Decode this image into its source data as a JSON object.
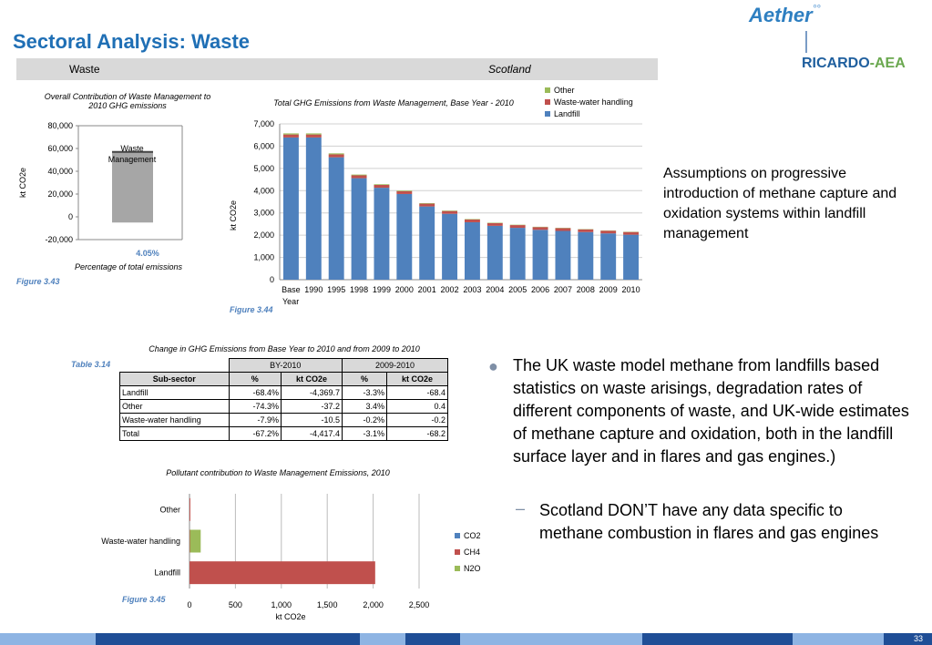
{
  "header": {
    "title": "Sectoral Analysis: Waste",
    "band_left": "Waste",
    "band_right": "Scotland",
    "logo_top": "Aether",
    "logo_bottom_a": "RICARDO",
    "logo_bottom_sep": "-",
    "logo_bottom_b": "AEA"
  },
  "colors": {
    "title": "#1f6fb5",
    "landfill": "#4f81bd",
    "wastewater": "#c0504d",
    "other": "#9bbb59",
    "gray_bar": "#a6a6a6",
    "band": "#d9d9d9"
  },
  "fig343": {
    "title_l1": "Overall Contribution of Waste Management to",
    "title_l2": "2010 GHG emissions",
    "ylabel": "kt CO2e",
    "bar_label_1": "Waste",
    "bar_label_2": "Management",
    "pct": "4.05%",
    "xlabel": "Percentage of total emissions",
    "caption": "Figure 3.43"
  },
  "fig344": {
    "title": "Total GHG Emissions from Waste Management, Base Year - 2010",
    "ylabel": "kt CO2e",
    "xlabel": "Year",
    "caption": "Figure 3.44",
    "legend": [
      "Other",
      "Waste-water handling",
      "Landfill"
    ]
  },
  "table314": {
    "title": "Change in GHG Emissions from Base Year to 2010 and from 2009 to 2010",
    "caption": "Table 3.14",
    "group_headers": [
      "BY-2010",
      "2009-2010"
    ],
    "col_headers": [
      "Sub-sector",
      "%",
      "kt CO2e",
      "%",
      "kt CO2e"
    ],
    "rows": [
      [
        "Landfill",
        "-68.4%",
        "-4,369.7",
        "-3.3%",
        "-68.4"
      ],
      [
        "Other",
        "-74.3%",
        "-37.2",
        "3.4%",
        "0.4"
      ],
      [
        "Waste-water handling",
        "-7.9%",
        "-10.5",
        "-0.2%",
        "-0.2"
      ],
      [
        "Total",
        "-67.2%",
        "-4,417.4",
        "-3.1%",
        "-68.2"
      ]
    ]
  },
  "fig345": {
    "title": "Pollutant contribution to Waste Management Emissions, 2010",
    "xlabel": "kt CO2e",
    "caption": "Figure 3.45",
    "legend": [
      "CO2",
      "CH4",
      "N2O"
    ]
  },
  "text": {
    "assumptions": "Assumptions on progressive introduction of methane capture and oxidation systems within landfill management",
    "bullet": "The UK waste model methane from landfills based statistics on waste arisings, degradation rates of different components of waste, and UK-wide estimates of methane capture and oxidation, both in the landfill surface layer and in flares and gas engines.)",
    "sub_bullet": "Scotland DON’T have any data specific to methane combustion in flares and gas engines",
    "page_number": "33"
  },
  "chart_data": [
    {
      "type": "bar",
      "title": "Overall Contribution of Waste Management to 2010 GHG emissions",
      "ylabel": "kt CO2e",
      "xlabel": "Percentage of total emissions",
      "categories": [
        "Waste Management"
      ],
      "ranges": [
        [
          -5000,
          57000
        ]
      ],
      "data_labels": [
        "4.05%"
      ],
      "yticks": [
        "-20,000",
        "0",
        "20,000",
        "40,000",
        "60,000",
        "80,000"
      ],
      "ylim": [
        -20000,
        80000
      ]
    },
    {
      "type": "bar",
      "stacked": true,
      "title": "Total GHG Emissions from Waste Management, Base Year - 2010",
      "ylabel": "kt CO2e",
      "xlabel": "Year",
      "categories": [
        "Base",
        "1990",
        "1995",
        "1998",
        "1999",
        "2000",
        "2001",
        "2002",
        "2003",
        "2004",
        "2005",
        "2006",
        "2007",
        "2008",
        "2009",
        "2010"
      ],
      "series": [
        {
          "name": "Landfill",
          "values": [
            6390,
            6390,
            5500,
            4560,
            4130,
            3850,
            3290,
            2960,
            2580,
            2420,
            2330,
            2240,
            2190,
            2140,
            2080,
            2020
          ]
        },
        {
          "name": "Waste-water handling",
          "values": [
            133,
            133,
            131,
            128,
            127,
            126,
            125,
            124,
            124,
            123,
            123,
            123,
            123,
            122,
            122,
            122
          ]
        },
        {
          "name": "Other",
          "values": [
            50,
            50,
            45,
            35,
            30,
            28,
            25,
            22,
            20,
            18,
            16,
            15,
            14,
            13,
            12,
            13
          ]
        }
      ],
      "yticks": [
        "0",
        "1,000",
        "2,000",
        "3,000",
        "4,000",
        "5,000",
        "6,000",
        "7,000"
      ],
      "ylim": [
        0,
        7000
      ]
    },
    {
      "type": "bar",
      "orientation": "horizontal",
      "title": "Pollutant contribution to Waste Management Emissions, 2010",
      "xlabel": "kt CO2e",
      "categories": [
        "Other",
        "Waste-water handling",
        "Landfill"
      ],
      "series": [
        {
          "name": "CO2",
          "values": [
            0,
            0,
            0
          ]
        },
        {
          "name": "CH4",
          "values": [
            9,
            5,
            2022
          ]
        },
        {
          "name": "N2O",
          "values": [
            0,
            117,
            0
          ]
        }
      ],
      "xticks": [
        "0",
        "500",
        "1,000",
        "1,500",
        "2,000",
        "2,500"
      ],
      "xlim": [
        0,
        2500
      ]
    }
  ]
}
